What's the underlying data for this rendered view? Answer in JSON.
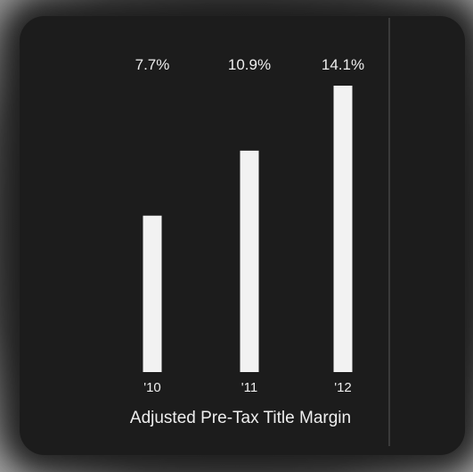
{
  "chart_data": {
    "type": "bar",
    "title": "Adjusted Pre-Tax Title Margin",
    "categories": [
      "'10",
      "'11",
      "'12"
    ],
    "values": [
      7.7,
      10.9,
      14.1
    ],
    "value_labels": [
      "7.7%",
      "10.9%",
      "14.1%"
    ],
    "unit": "%",
    "ylim": [
      0,
      14.1
    ],
    "grid": false,
    "colors": {
      "background": "#1c1c1c",
      "bar": "#f2f2f2",
      "text": "#eeeeee"
    }
  }
}
